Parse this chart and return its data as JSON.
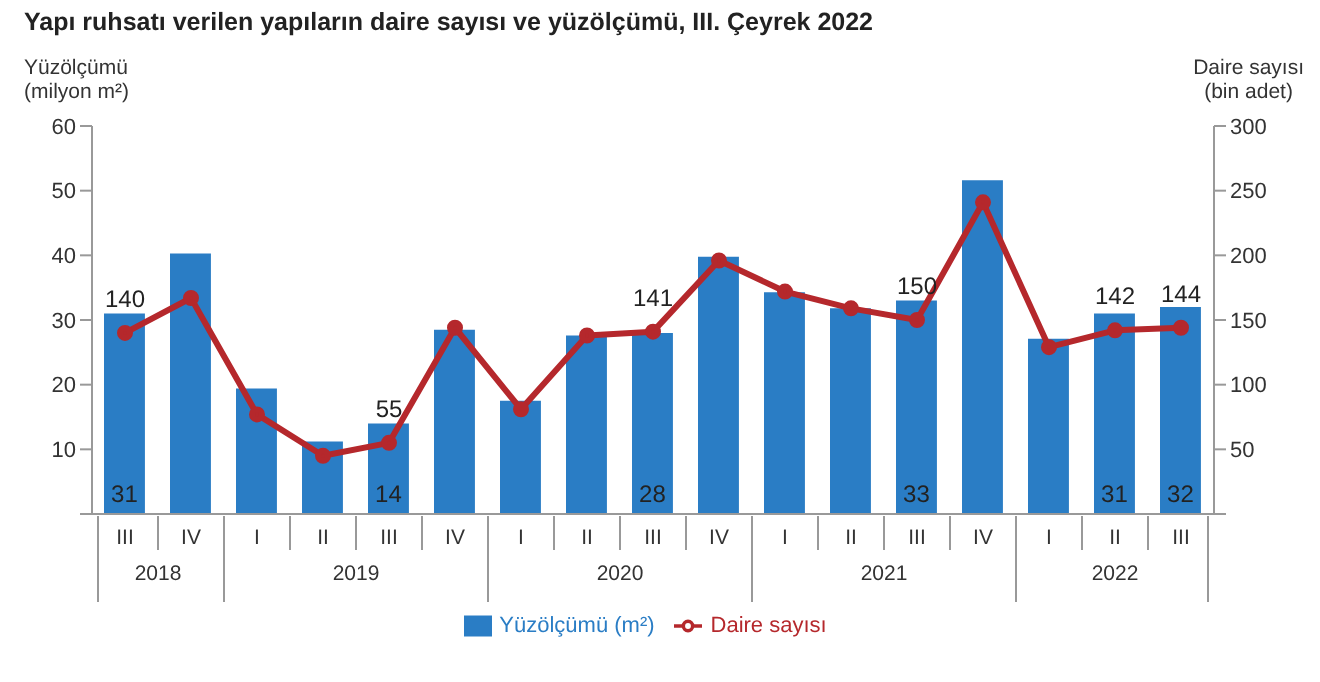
{
  "chart_data": {
    "type": "bar",
    "title": "Yapı ruhsatı verilen yapıların daire sayısı ve yüzölçümü, III. Çeyrek 2022",
    "ylabel": "Yüzölçümü\n(milyon m²)",
    "y2label": "Daire sayısı\n(bin adet)",
    "categories": [
      "III",
      "IV",
      "I",
      "II",
      "III",
      "IV",
      "I",
      "II",
      "III",
      "IV",
      "I",
      "II",
      "III",
      "IV",
      "I",
      "II",
      "III"
    ],
    "annotations": [
      "2018",
      "2019",
      "2020",
      "2021",
      "2022"
    ],
    "series": [
      {
        "name": "Yüzölçümü (m²)",
        "color": "#2a7dc5",
        "values": [
          31,
          40.3,
          19.4,
          11.2,
          14,
          28.5,
          17.5,
          27.6,
          28,
          39.8,
          34.3,
          31.8,
          33,
          51.6,
          27.1,
          31,
          32
        ],
        "value_labels": [
          "31",
          null,
          null,
          null,
          "14",
          null,
          null,
          null,
          "28",
          null,
          null,
          null,
          "33",
          null,
          null,
          "31",
          "32"
        ]
      },
      {
        "name": "Daire sayısı",
        "type": "line",
        "axis": "y2",
        "color": "#b5282c",
        "values": [
          140,
          167,
          77,
          45,
          55,
          144,
          81,
          138,
          141,
          196,
          172,
          159,
          150,
          241,
          129,
          142,
          144
        ],
        "value_labels": [
          "140",
          null,
          null,
          null,
          "55",
          null,
          null,
          null,
          "141",
          null,
          null,
          null,
          "150",
          null,
          null,
          "142",
          "144"
        ]
      }
    ],
    "ylim": [
      0,
      60
    ],
    "yticks": [
      {
        "value": 0,
        "label": null
      },
      10,
      20,
      30,
      40,
      50,
      60
    ],
    "y2lim": [
      0,
      300
    ],
    "y2ticks": [
      {
        "value": 0,
        "label": null
      },
      50,
      100,
      150,
      200,
      250,
      300
    ],
    "grid": false,
    "legend": "bottom",
    "marker": "circle",
    "line_style": "solid"
  }
}
